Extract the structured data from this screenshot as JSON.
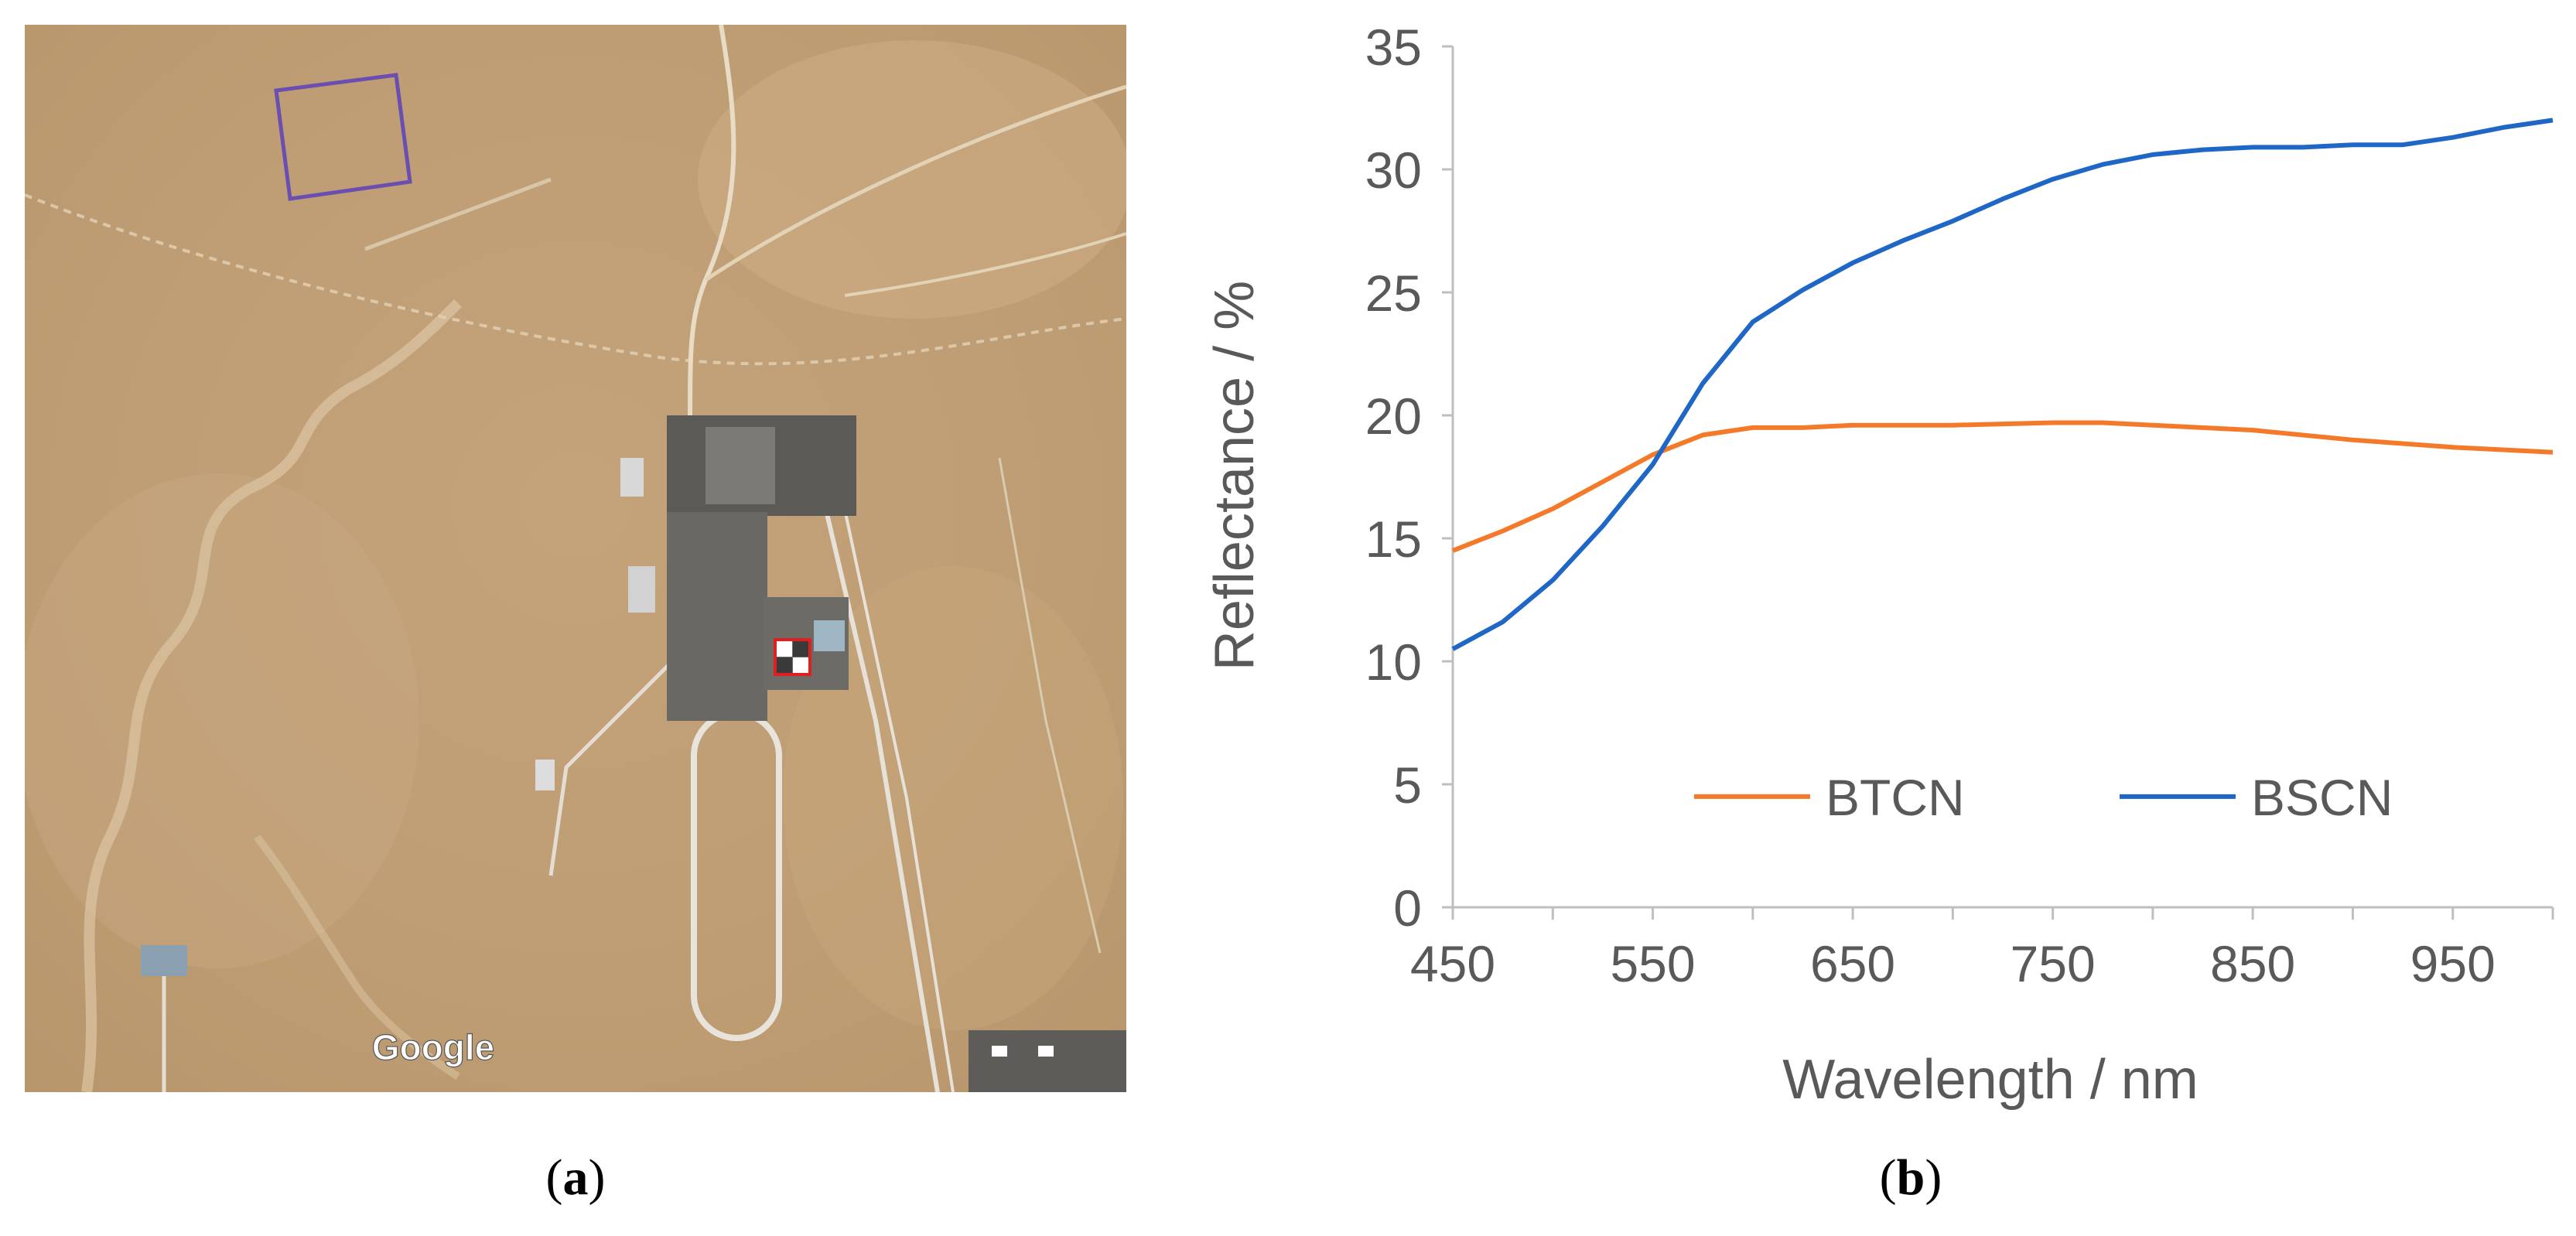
{
  "panel_a": {
    "watermark": "Google",
    "caption_letter": "a",
    "colors": {
      "terrain": "#c9a77c",
      "site_box": "#6a4fb0",
      "target_box": "#e02020"
    }
  },
  "panel_b": {
    "caption_letter": "b"
  },
  "chart_data": {
    "type": "line",
    "title": "",
    "xlabel": "Wavelength / nm",
    "ylabel": "Reflectance / %",
    "xlim": [
      450,
      1000
    ],
    "ylim": [
      0,
      35
    ],
    "xticks": [
      450,
      550,
      650,
      750,
      850,
      950
    ],
    "yticks": [
      0,
      5,
      10,
      15,
      20,
      25,
      30,
      35
    ],
    "grid": false,
    "legend_position": "bottom-center",
    "series": [
      {
        "name": "BTCN",
        "color": "#f47a2a",
        "x": [
          450,
          475,
          500,
          525,
          550,
          575,
          600,
          625,
          650,
          700,
          750,
          775,
          800,
          850,
          900,
          950,
          975,
          1000
        ],
        "y": [
          14.5,
          15.3,
          16.2,
          17.3,
          18.4,
          19.2,
          19.5,
          19.5,
          19.6,
          19.6,
          19.7,
          19.7,
          19.6,
          19.4,
          19.0,
          18.7,
          18.6,
          18.5
        ]
      },
      {
        "name": "BSCN",
        "color": "#1f67c6",
        "x": [
          450,
          475,
          500,
          525,
          550,
          575,
          600,
          625,
          650,
          675,
          700,
          725,
          750,
          775,
          800,
          825,
          850,
          875,
          900,
          925,
          950,
          975,
          1000
        ],
        "y": [
          10.5,
          11.6,
          13.3,
          15.5,
          18.0,
          21.3,
          23.8,
          25.1,
          26.2,
          27.1,
          27.9,
          28.8,
          29.6,
          30.2,
          30.6,
          30.8,
          30.9,
          30.9,
          31.0,
          31.0,
          31.3,
          31.7,
          32.0
        ]
      }
    ]
  }
}
